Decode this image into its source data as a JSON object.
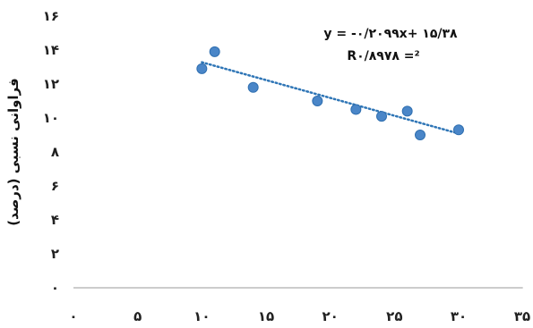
{
  "chart_data": {
    "type": "scatter",
    "title": "",
    "xlabel": "",
    "ylabel": "فراوانی نسبی (درصد)",
    "xlim": [
      0,
      35
    ],
    "ylim": [
      0,
      16
    ],
    "x_ticks": [
      0,
      5,
      10,
      15,
      20,
      25,
      30,
      35
    ],
    "x_tick_labels": [
      "۰",
      "۵",
      "۱۰",
      "۱۵",
      "۲۰",
      "۲۵",
      "۳۰",
      "۳۵"
    ],
    "y_ticks": [
      0,
      2,
      4,
      6,
      8,
      10,
      12,
      14,
      16
    ],
    "y_tick_labels": [
      "۰",
      "۲",
      "۴",
      "۶",
      "۸",
      "۱۰",
      "۱۲",
      "۱۴",
      "۱۶"
    ],
    "grid": false,
    "legend": "none",
    "series": [
      {
        "points": [
          {
            "x": 10,
            "y": 12.9
          },
          {
            "x": 11,
            "y": 13.9
          },
          {
            "x": 14,
            "y": 11.8
          },
          {
            "x": 19,
            "y": 11.0
          },
          {
            "x": 22,
            "y": 10.5
          },
          {
            "x": 24,
            "y": 10.1
          },
          {
            "x": 26,
            "y": 10.4
          },
          {
            "x": 27,
            "y": 9.0
          },
          {
            "x": 30,
            "y": 9.3
          }
        ],
        "color": "#4a86c8"
      }
    ],
    "trendline": {
      "type": "linear",
      "slope": -0.2099,
      "intercept": 15.38,
      "x_range": [
        10,
        30
      ],
      "color": "#2e75b6",
      "style": "dotted"
    },
    "annotations": [
      "y = -۰/۲۰۹۹x+ ۱۵/۳۸",
      "R۰/۸۹۷۸ =²"
    ]
  }
}
